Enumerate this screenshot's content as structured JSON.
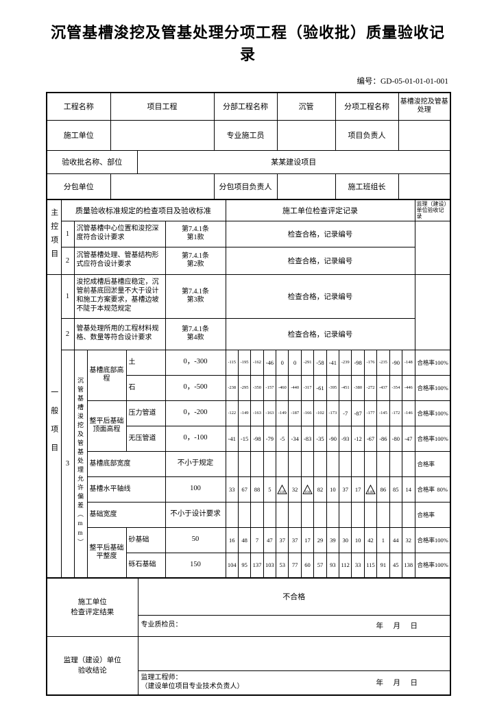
{
  "title": "沉管基槽浚挖及管基处理分项工程（验收批）质量验收记录",
  "doc_no_label": "编号：",
  "doc_no": "GD-05-01-01-01-001",
  "info": {
    "project_name_label": "工程名称",
    "project_name": "项目工程",
    "division_label": "分部工程名称",
    "division": "沉管",
    "subitem_label": "分项工程名称",
    "subitem": "基槽浚挖及管基处理",
    "contractor_label": "施工单位",
    "contractor": "",
    "specialist_label": "专业施工员",
    "specialist": "",
    "project_leader_label": "项目负责人",
    "project_leader": "",
    "batch_label": "验收批名称、部位",
    "batch": "某某建设项目",
    "subcontractor_label": "分包单位",
    "subcontractor": "",
    "sub_leader_label": "分包项目负责人",
    "sub_leader": "",
    "crew_leader_label": "施工班组长",
    "crew_leader": ""
  },
  "main_header": {
    "items_header": "质量验收标准规定的检查项目及验收标准",
    "contractor_record_header": "施工单位检查评定记录",
    "supervisor_record_header": "监理（建设）单位验收记录"
  },
  "master_section": {
    "label": "主控项目",
    "rows": [
      {
        "no": "1",
        "item": "沉管基槽中心位置和浚挖深度符合设计要求",
        "clause": "第7.4.1条",
        "clause2": "第1款",
        "result": "检查合格，记录编号"
      },
      {
        "no": "2",
        "item": "沉管基槽处理、管基结构形式应符合设计要求",
        "clause": "第7.4.1条",
        "clause2": "第2款",
        "result": "检查合格，记录编号"
      }
    ]
  },
  "general_section": {
    "label": "一般项目",
    "rows": [
      {
        "no": "1",
        "item": "浚挖成槽后基槽应稳定，沉管前基底回淤量不大于设计和施工方案要求，基槽边坡不陡于本规范规定",
        "clause": "第7.4.1条",
        "clause2": "第3款",
        "result": "检查合格，记录编号"
      },
      {
        "no": "2",
        "item": "管基处理所用的工程材料规格、数量等符合设计要求",
        "clause": "第7.4.1条",
        "clause2": "第4款",
        "result": "检查合格，记录编号"
      }
    ],
    "deviation": {
      "no": "3",
      "side_label": "沉管基槽浚挖及管基处理允许偏差（mm）",
      "rate_label": "合格率",
      "groups": [
        {
          "label": "基槽底部高程",
          "rows": [
            {
              "sub": "土",
              "spec": "0，-300",
              "values": [
                -115,
                -195,
                -162,
                -46,
                0,
                0,
                -291,
                -58,
                -41,
                -239,
                -98,
                -176,
                -235,
                -90,
                -148
              ],
              "rate": "100%"
            },
            {
              "sub": "石",
              "spec": "0，-500",
              "values": [
                -238,
                -295,
                -350,
                -157,
                -460,
                -440,
                -317,
                -61,
                -395,
                -451,
                -380,
                -272,
                -437,
                -354,
                -446
              ],
              "rate": "100%"
            }
          ]
        },
        {
          "label": "整平后基础顶面高程",
          "rows": [
            {
              "sub": "压力管道",
              "spec": "0，-200",
              "values": [
                -122,
                -149,
                -163,
                -163,
                -149,
                -187,
                -166,
                -102,
                -173,
                -7,
                -87,
                -177,
                -145,
                -172,
                -146
              ],
              "rate": "100%"
            },
            {
              "sub": "无压管道",
              "spec": "0，-100",
              "values": [
                -41,
                -15,
                -98,
                -79,
                -5,
                -34,
                -83,
                -35,
                -90,
                -93,
                -12,
                -67,
                -86,
                -80,
                -47
              ],
              "rate": "100%"
            }
          ]
        },
        {
          "label": "基槽底部宽度",
          "rows": [
            {
              "sub": null,
              "spec": "不小于规定",
              "values": [],
              "rate": ""
            }
          ]
        },
        {
          "label": "基槽水平轴线",
          "rows": [
            {
              "sub": null,
              "spec": "100",
              "values": [
                33,
                67,
                88,
                5,
                {
                  "over_limit": true,
                  "value": 118
                },
                32,
                {
                  "over_limit": true,
                  "value": 104
                },
                82,
                10,
                37,
                17,
                {
                  "over_limit": true,
                  "value": 140
                },
                86,
                85,
                14
              ],
              "rate": "80%"
            }
          ]
        },
        {
          "label": "基础宽度",
          "rows": [
            {
              "sub": null,
              "spec": "不小于设计要求",
              "values": [],
              "rate": ""
            }
          ]
        },
        {
          "label": "整平后基础平整度",
          "rows": [
            {
              "sub": "砂基础",
              "spec": "50",
              "values": [
                16,
                48,
                7,
                47,
                37,
                37,
                17,
                29,
                39,
                30,
                10,
                42,
                1,
                44,
                32
              ],
              "rate": "100%"
            },
            {
              "sub": "砾石基础",
              "spec": "150",
              "values": [
                104,
                95,
                137,
                103,
                53,
                77,
                60,
                57,
                93,
                112,
                33,
                115,
                91,
                45,
                138
              ],
              "rate": "100%"
            }
          ]
        }
      ]
    }
  },
  "contractor_result": {
    "label_line1": "施工单位",
    "label_line2": "检查评定结果",
    "result": "不合格",
    "inspector_label": "专业质检员：",
    "date": "年　月　日"
  },
  "supervisor_conclusion": {
    "label_line1": "监理（建设）单位",
    "label_line2": "验收结论",
    "engineer_label": "监理工程师：",
    "engineer_note": "（建设单位项目专业技术负责人）",
    "date": "年　月　日"
  }
}
